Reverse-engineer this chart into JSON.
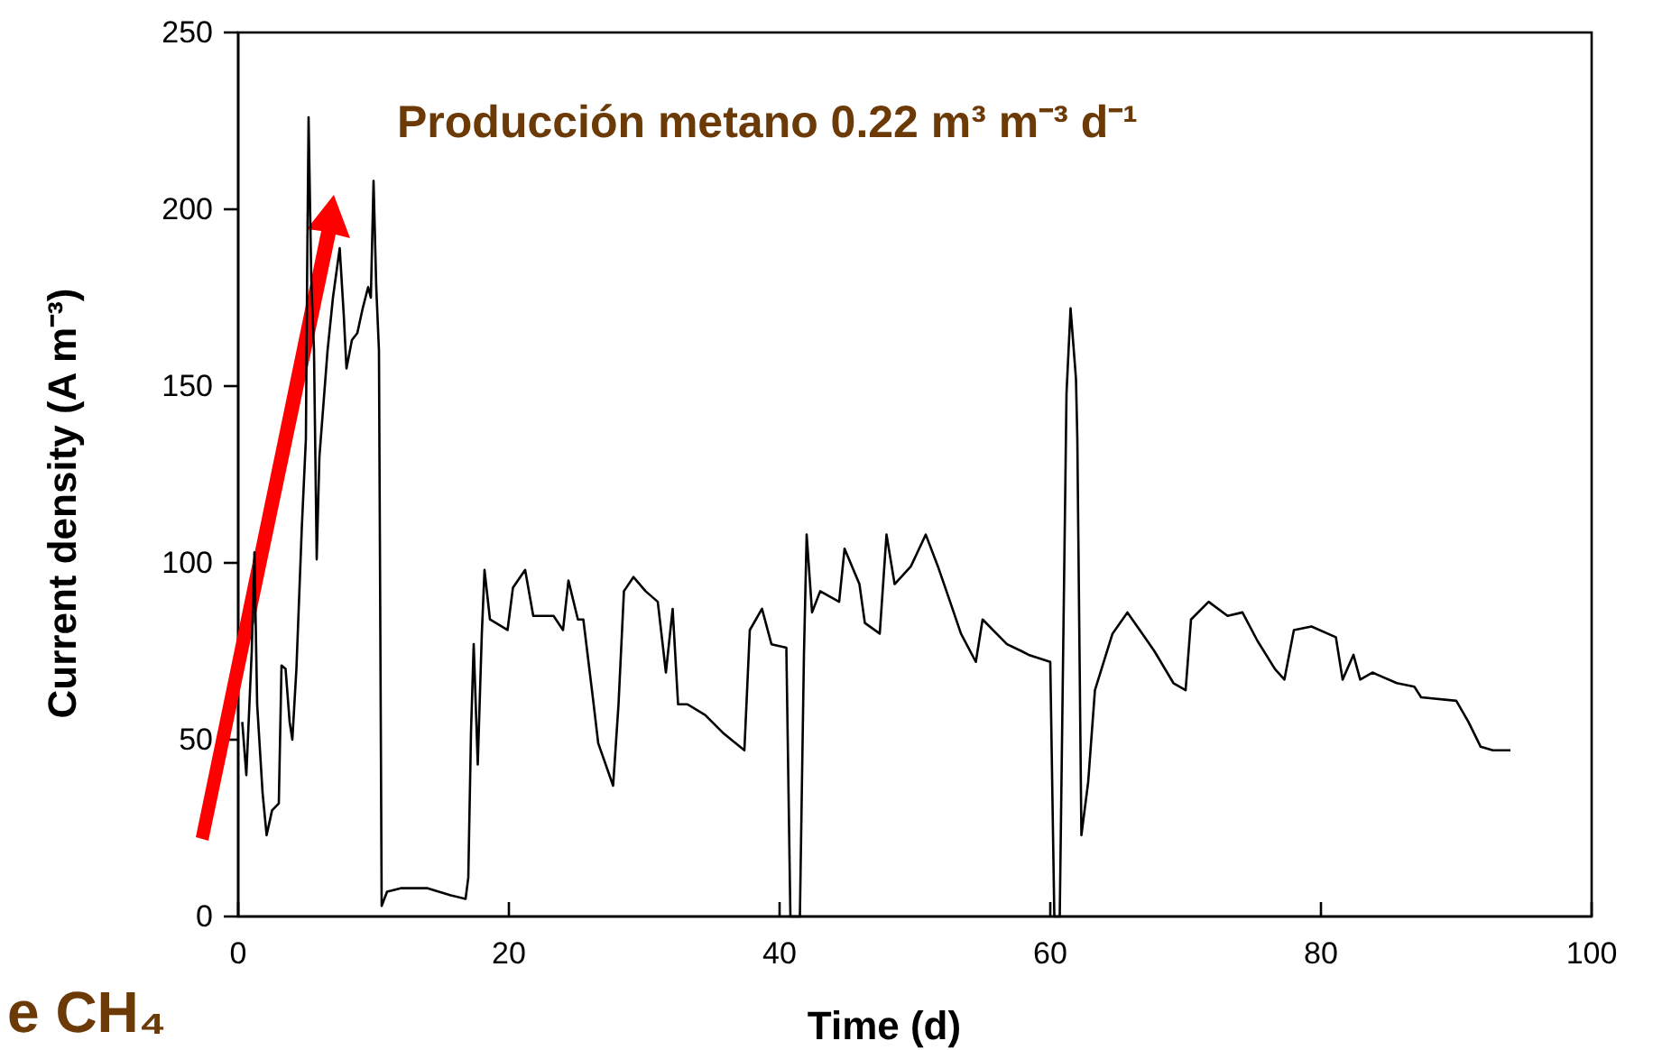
{
  "chart_data": {
    "type": "line",
    "title": "Producción metano 0.22 m³ m⁻³ d⁻¹",
    "xlabel": "Time (d)",
    "ylabel": "Current density (A m⁻³)",
    "annotations": [
      "e CH₄"
    ],
    "xlim": [
      0,
      100
    ],
    "ylim": [
      0,
      250
    ],
    "xticks": [
      0,
      20,
      40,
      60,
      80,
      100
    ],
    "yticks": [
      0,
      50,
      100,
      150,
      200,
      250
    ],
    "grid": false,
    "marker": "none",
    "line_style": "solid",
    "series": [
      {
        "color": "#000000",
        "x": [
          0.3,
          0.6,
          1,
          1.2,
          1.4,
          1.8,
          2.1,
          2.5,
          3,
          3.2,
          3.5,
          3.8,
          4,
          4.3,
          4.5,
          4.7,
          5,
          5.1,
          5.2,
          5.4,
          5.6,
          5.8,
          6,
          6.3,
          6.6,
          7,
          7.5,
          7.8,
          8,
          8.4,
          8.8,
          9.2,
          9.6,
          9.8,
          10,
          10.2,
          10.4,
          10.6,
          11,
          12,
          14,
          15.7,
          16.8,
          17,
          17.2,
          17.4,
          17.7,
          18,
          18.2,
          18.6,
          19.9,
          20.3,
          21.2,
          21.8,
          23.3,
          24,
          24.4,
          25.1,
          25.5,
          26.2,
          26.6,
          27.7,
          28.1,
          28.5,
          29.2,
          30.1,
          31,
          31.6,
          32.1,
          32.5,
          33.2,
          34.5,
          35.8,
          37.4,
          37.8,
          38.7,
          39.4,
          40.5,
          40.8,
          41.5,
          41.8,
          42,
          42.4,
          43,
          44.4,
          44.8,
          45.9,
          46.3,
          47.4,
          47.9,
          48.5,
          49.7,
          50.8,
          51.7,
          52.6,
          53.4,
          54.5,
          55,
          56.8,
          57.9,
          58.4,
          60,
          60.3,
          60.7,
          61.2,
          61.5,
          61.9,
          62,
          62.3,
          62.8,
          63.3,
          64.6,
          65.7,
          66.8,
          67.7,
          69.1,
          70,
          70.4,
          71.7,
          73.1,
          74.2,
          75.3,
          76.6,
          77.3,
          78,
          79.3,
          81.1,
          81.6,
          82.4,
          82.9,
          83.8,
          85.6,
          86.9,
          87.4,
          90,
          90.9,
          91.8,
          92.7,
          94
        ],
        "values": [
          55,
          40,
          75,
          103,
          60,
          35,
          23,
          30,
          32,
          71,
          70,
          55,
          50,
          70,
          90,
          110,
          135,
          185,
          226,
          180,
          160,
          101,
          130,
          145,
          160,
          175,
          189,
          170,
          155,
          163,
          165,
          172,
          178,
          175,
          208,
          178,
          160,
          3,
          7,
          8,
          8,
          6,
          5,
          11,
          52,
          77,
          43,
          80,
          98,
          84,
          81,
          93,
          98,
          85,
          85,
          81,
          95,
          84,
          84,
          62,
          49,
          37,
          60,
          92,
          96,
          92,
          89,
          69,
          87,
          60,
          60,
          57,
          52,
          47,
          81,
          87,
          77,
          76,
          0,
          0,
          74,
          108,
          86,
          92,
          89,
          104,
          94,
          83,
          80,
          108,
          94,
          99,
          108,
          99,
          89,
          80,
          72,
          84,
          77,
          75,
          74,
          72,
          0,
          0,
          148,
          172,
          152,
          135,
          23,
          38,
          64,
          80,
          86,
          80,
          75,
          66,
          64,
          84,
          89,
          85,
          86,
          78,
          70,
          67,
          81,
          82,
          79,
          67,
          74,
          67,
          69,
          66,
          65,
          62,
          61,
          55,
          48,
          47,
          47
        ]
      }
    ]
  }
}
